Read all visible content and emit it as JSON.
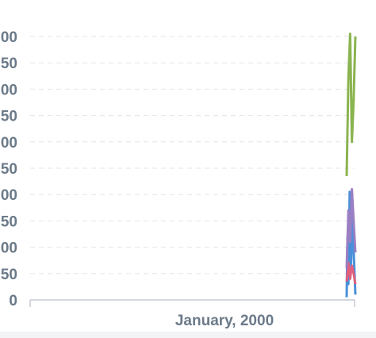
{
  "chart_data": {
    "type": "line",
    "title": "",
    "xlabel": "",
    "ylabel": "",
    "x_tick_labels": [
      "January, 2000"
    ],
    "y_tick_labels": [
      "0",
      "50",
      "00",
      "50",
      "00",
      "50",
      "00",
      "50",
      "00",
      "50",
      "00"
    ],
    "ylim": [
      0,
      500
    ],
    "grid": true,
    "series": [
      {
        "color": "#4a90d9",
        "x": [
          0.0,
          0.1,
          0.2,
          0.35,
          0.5,
          0.65,
          0.8,
          1.0
        ],
        "y": [
          5,
          120,
          30,
          205,
          60,
          180,
          95,
          10
        ]
      },
      {
        "color": "#e0607e",
        "x": [
          0.0,
          0.2,
          0.4,
          0.6,
          0.8,
          1.0
        ],
        "y": [
          35,
          70,
          40,
          65,
          50,
          30
        ]
      },
      {
        "color": "#9b7fc4",
        "x": [
          0.0,
          0.2,
          0.4,
          0.6,
          0.8,
          1.0
        ],
        "y": [
          60,
          170,
          110,
          210,
          150,
          90
        ]
      },
      {
        "color": "#8ab44f",
        "x": [
          0.0,
          0.2,
          0.4,
          0.6,
          0.8,
          1.0
        ],
        "y": [
          235,
          420,
          505,
          300,
          380,
          500
        ]
      }
    ]
  }
}
